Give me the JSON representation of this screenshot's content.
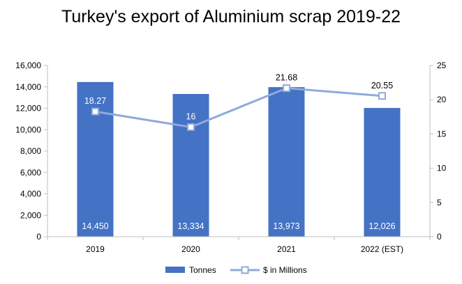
{
  "title": "Turkey's export of Aluminium scrap 2019-22",
  "chart_data": {
    "type": "bar",
    "categories": [
      "2019",
      "2020",
      "2021",
      "2022 (EST)"
    ],
    "series": [
      {
        "name": "Tonnes",
        "type": "bar",
        "axis": "left",
        "values": [
          14450,
          13334,
          13973,
          12026
        ],
        "labels": [
          "14,450",
          "13,334",
          "13,973",
          "12,026"
        ],
        "color": "#4472C4"
      },
      {
        "name": "$ in Millions",
        "type": "line",
        "axis": "right",
        "values": [
          18.27,
          16,
          21.68,
          20.55
        ],
        "labels": [
          "18.27",
          "16",
          "21.68",
          "20.55"
        ],
        "color": "#8FAADC"
      }
    ],
    "y_left": {
      "lim": [
        0,
        16000
      ],
      "ticks": [
        "0",
        "2,000",
        "4,000",
        "6,000",
        "8,000",
        "10,000",
        "12,000",
        "14,000",
        "16,000"
      ]
    },
    "y_right": {
      "lim": [
        0,
        25
      ],
      "ticks": [
        "0",
        "5",
        "10",
        "15",
        "20",
        "25"
      ]
    },
    "grid": false,
    "legend_position": "bottom"
  }
}
